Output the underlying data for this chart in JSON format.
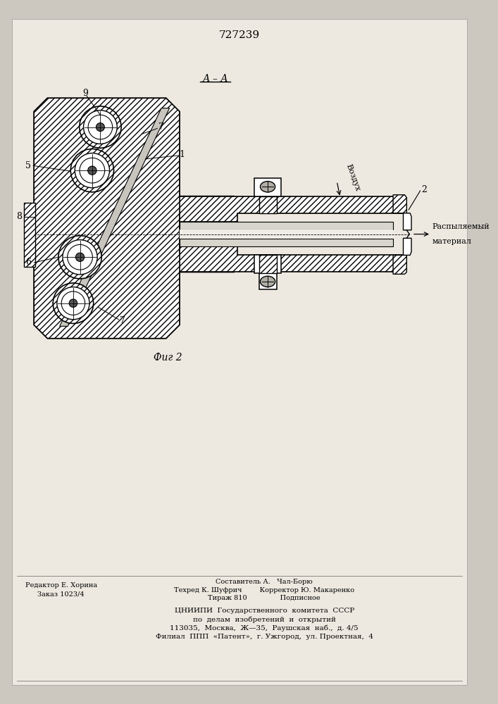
{
  "title": "727239",
  "section_label": "А – А",
  "fig_label": "Фиг 2",
  "bg_color": "#ccc8c0",
  "paper_color": "#ede9e0",
  "line_color": "#000000",
  "footer_left_line1": "Редактор Е. Хорина",
  "footer_left_line2": "Заказ 1023/4",
  "footer_mid_line1": "Составитель А.   Чал-Борю",
  "footer_mid_line2": "Техред К. Шуфрич        Корректор Ю. Макаренко",
  "footer_mid_line3": "Тираж 810               Подписное",
  "footer_center1": "ЦНИИПИ  Государственного  комитета  СССР",
  "footer_center2": "по  делам  изобретений  и  открытий",
  "footer_center3": "113035,  Москва,  Ж—35,  Раушская  наб.,  д. 4/5",
  "footer_center4": "Филиал  ППП  «Патент»,  г. Ужгород,  ул. Проектная,  4"
}
